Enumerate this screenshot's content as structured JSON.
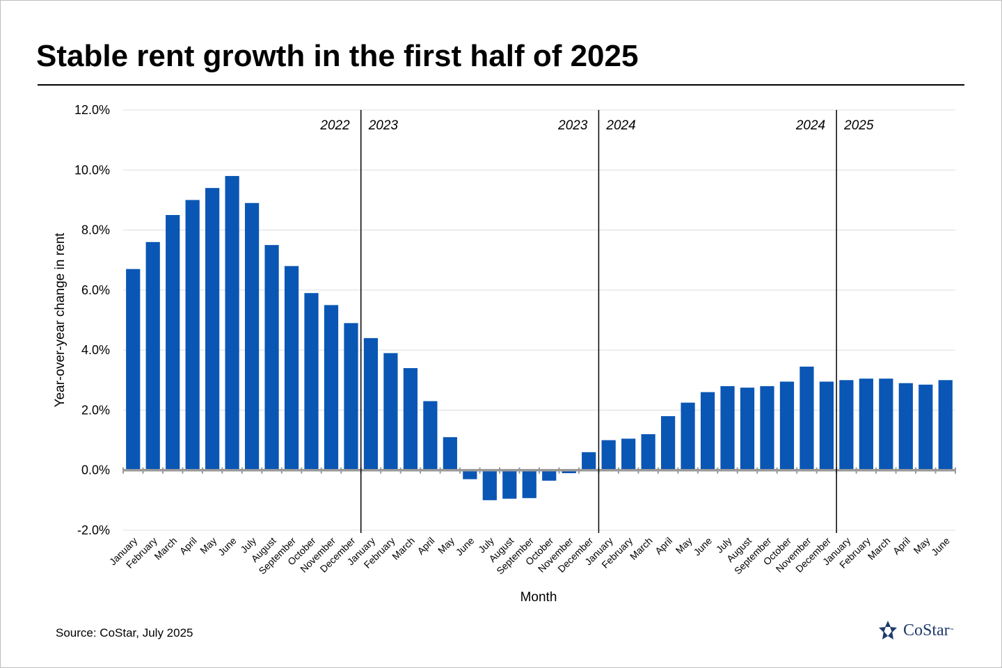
{
  "title": "Stable rent growth in the first half of 2025",
  "source": "Source: CoStar, July 2025",
  "logo": {
    "text": "CoStar",
    "tm": "™",
    "icon": "costar-star-icon"
  },
  "colors": {
    "bar": "#0a56b4",
    "zero_line": "#9a9a9a",
    "grid": "#dcdcdc",
    "divider": "#000000"
  },
  "chart_data": {
    "type": "bar",
    "title": "Stable rent growth in the first half of 2025",
    "xlabel": "Month",
    "ylabel": "Year-over-year change in rent",
    "ylim": [
      -2,
      12
    ],
    "yticks": [
      -2,
      0,
      2,
      4,
      6,
      8,
      10,
      12
    ],
    "ytick_labels": [
      "-2.0%",
      "0.0%",
      "2.0%",
      "4.0%",
      "6.0%",
      "8.0%",
      "10.0%",
      "12.0%"
    ],
    "grid": true,
    "categories": [
      "January",
      "February",
      "March",
      "April",
      "May",
      "June",
      "July",
      "August",
      "September",
      "October",
      "November",
      "December",
      "January",
      "February",
      "March",
      "April",
      "May",
      "June",
      "July",
      "August",
      "September",
      "October",
      "November",
      "December",
      "January",
      "February",
      "March",
      "April",
      "May",
      "June",
      "July",
      "August",
      "September",
      "October",
      "November",
      "December",
      "January",
      "February",
      "March",
      "April",
      "May",
      "June"
    ],
    "values": [
      6.7,
      7.6,
      8.5,
      9.0,
      9.4,
      9.8,
      8.9,
      7.5,
      6.8,
      5.9,
      5.5,
      4.9,
      4.4,
      3.9,
      3.4,
      2.3,
      1.1,
      -0.3,
      -1.0,
      -0.95,
      -0.93,
      -0.35,
      -0.1,
      0.6,
      1.0,
      1.05,
      1.2,
      1.8,
      2.25,
      2.6,
      2.8,
      2.75,
      2.8,
      2.95,
      3.45,
      2.95,
      3.0,
      3.05,
      3.05,
      2.9,
      2.85,
      3.0
    ],
    "dividers": [
      {
        "after_index": 11,
        "left_label": "2022",
        "right_label": "2023"
      },
      {
        "after_index": 23,
        "left_label": "2023",
        "right_label": "2024"
      },
      {
        "after_index": 35,
        "left_label": "2024",
        "right_label": "2025"
      }
    ]
  }
}
